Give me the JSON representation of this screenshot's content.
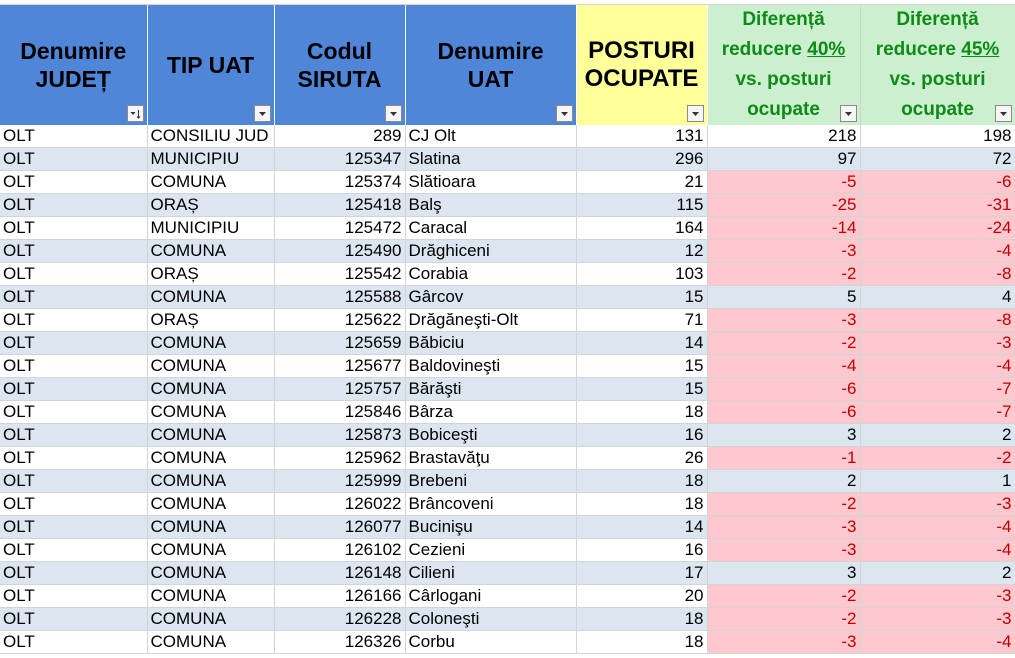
{
  "headers": {
    "judet": [
      "Denumire",
      "JUDEȚ"
    ],
    "tip": [
      "TIP UAT"
    ],
    "siruta": [
      "Codul",
      "SIRUTA"
    ],
    "uat": [
      "Denumire",
      "UAT"
    ],
    "posturi": [
      "POSTURI",
      "OCUPATE"
    ],
    "dif40": {
      "line1": "Diferență",
      "pre": "reducere ",
      "pct": "40%",
      "line3": "vs. posturi",
      "line4": "ocupate"
    },
    "dif45": {
      "line1": "Diferență",
      "pre": "reducere ",
      "pct": "45%",
      "line3": "vs. posturi",
      "line4": "ocupate"
    }
  },
  "icons": {
    "filter": "filter-dropdown-icon",
    "sort": "sort-ascending-filter-icon"
  },
  "colors": {
    "header_blue": "#4f86d8",
    "header_yellow": "#ffff99",
    "header_green": "#ccf0cf",
    "green_text": "#0e8a16",
    "negative_fill": "#ffc7ce",
    "negative_text": "#c00000",
    "band": "#dce6f1"
  },
  "rows": [
    {
      "judet": "OLT",
      "tip": "CONSILIU JUD",
      "siruta": "289",
      "uat": "CJ Olt",
      "posturi": "131",
      "dif40": "218",
      "dif45": "198"
    },
    {
      "judet": "OLT",
      "tip": "MUNICIPIU",
      "siruta": "125347",
      "uat": "Slatina",
      "posturi": "296",
      "dif40": "97",
      "dif45": "72"
    },
    {
      "judet": "OLT",
      "tip": "COMUNA",
      "siruta": "125374",
      "uat": "Slătioara",
      "posturi": "21",
      "dif40": "-5",
      "dif45": "-6"
    },
    {
      "judet": "OLT",
      "tip": "ORAȘ",
      "siruta": "125418",
      "uat": "Balş",
      "posturi": "115",
      "dif40": "-25",
      "dif45": "-31"
    },
    {
      "judet": "OLT",
      "tip": "MUNICIPIU",
      "siruta": "125472",
      "uat": "Caracal",
      "posturi": "164",
      "dif40": "-14",
      "dif45": "-24"
    },
    {
      "judet": "OLT",
      "tip": "COMUNA",
      "siruta": "125490",
      "uat": "Drăghiceni",
      "posturi": "12",
      "dif40": "-3",
      "dif45": "-4"
    },
    {
      "judet": "OLT",
      "tip": "ORAȘ",
      "siruta": "125542",
      "uat": "Corabia",
      "posturi": "103",
      "dif40": "-2",
      "dif45": "-8"
    },
    {
      "judet": "OLT",
      "tip": "COMUNA",
      "siruta": "125588",
      "uat": "Gârcov",
      "posturi": "15",
      "dif40": "5",
      "dif45": "4"
    },
    {
      "judet": "OLT",
      "tip": "ORAȘ",
      "siruta": "125622",
      "uat": "Drăgăneşti-Olt",
      "posturi": "71",
      "dif40": "-3",
      "dif45": "-8"
    },
    {
      "judet": "OLT",
      "tip": "COMUNA",
      "siruta": "125659",
      "uat": "Băbiciu",
      "posturi": "14",
      "dif40": "-2",
      "dif45": "-3"
    },
    {
      "judet": "OLT",
      "tip": "COMUNA",
      "siruta": "125677",
      "uat": "Baldovineşti",
      "posturi": "15",
      "dif40": "-4",
      "dif45": "-4"
    },
    {
      "judet": "OLT",
      "tip": "COMUNA",
      "siruta": "125757",
      "uat": "Bărăşti",
      "posturi": "15",
      "dif40": "-6",
      "dif45": "-7"
    },
    {
      "judet": "OLT",
      "tip": "COMUNA",
      "siruta": "125846",
      "uat": "Bârza",
      "posturi": "18",
      "dif40": "-6",
      "dif45": "-7"
    },
    {
      "judet": "OLT",
      "tip": "COMUNA",
      "siruta": "125873",
      "uat": "Bobiceşti",
      "posturi": "16",
      "dif40": "3",
      "dif45": "2"
    },
    {
      "judet": "OLT",
      "tip": "COMUNA",
      "siruta": "125962",
      "uat": "Brastavăţu",
      "posturi": "26",
      "dif40": "-1",
      "dif45": "-2"
    },
    {
      "judet": "OLT",
      "tip": "COMUNA",
      "siruta": "125999",
      "uat": "Brebeni",
      "posturi": "18",
      "dif40": "2",
      "dif45": "1"
    },
    {
      "judet": "OLT",
      "tip": "COMUNA",
      "siruta": "126022",
      "uat": "Brâncoveni",
      "posturi": "18",
      "dif40": "-2",
      "dif45": "-3"
    },
    {
      "judet": "OLT",
      "tip": "COMUNA",
      "siruta": "126077",
      "uat": "Bucinişu",
      "posturi": "14",
      "dif40": "-3",
      "dif45": "-4"
    },
    {
      "judet": "OLT",
      "tip": "COMUNA",
      "siruta": "126102",
      "uat": "Cezieni",
      "posturi": "16",
      "dif40": "-3",
      "dif45": "-4"
    },
    {
      "judet": "OLT",
      "tip": "COMUNA",
      "siruta": "126148",
      "uat": "Cilieni",
      "posturi": "17",
      "dif40": "3",
      "dif45": "2"
    },
    {
      "judet": "OLT",
      "tip": "COMUNA",
      "siruta": "126166",
      "uat": "Cârlogani",
      "posturi": "20",
      "dif40": "-2",
      "dif45": "-3"
    },
    {
      "judet": "OLT",
      "tip": "COMUNA",
      "siruta": "126228",
      "uat": "Coloneşti",
      "posturi": "18",
      "dif40": "-2",
      "dif45": "-3"
    },
    {
      "judet": "OLT",
      "tip": "COMUNA",
      "siruta": "126326",
      "uat": "Corbu",
      "posturi": "18",
      "dif40": "-3",
      "dif45": "-4"
    }
  ]
}
